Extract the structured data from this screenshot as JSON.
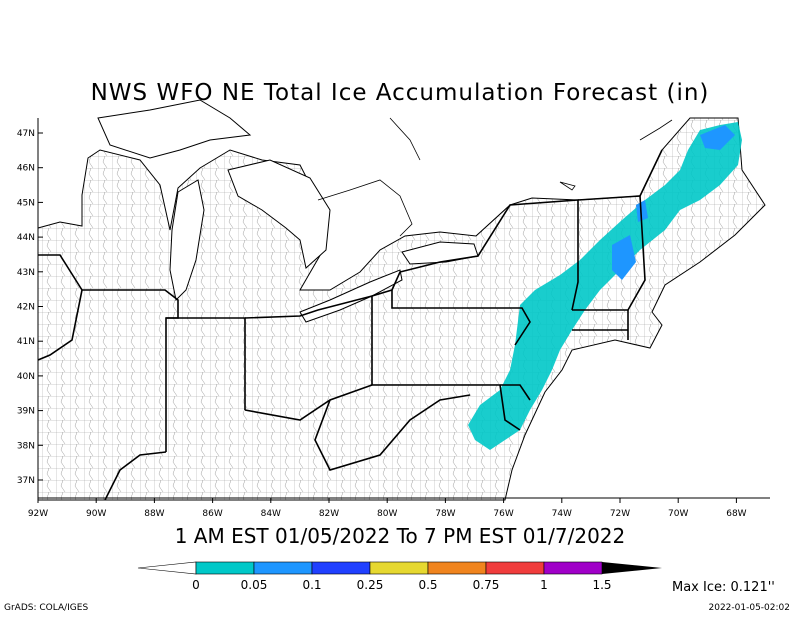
{
  "title": "NWS WFO NE Total Ice Accumulation Forecast (in)",
  "valid_period": "1 AM EST 01/05/2022 To 7 PM EST 01/7/2022",
  "lat_labels": [
    "47N",
    "46N",
    "45N",
    "44N",
    "43N",
    "42N",
    "41N",
    "40N",
    "39N",
    "38N",
    "37N"
  ],
  "lon_labels": [
    "92W",
    "90W",
    "88W",
    "86W",
    "84W",
    "82W",
    "80W",
    "78W",
    "76W",
    "74W",
    "72W",
    "70W",
    "68W"
  ],
  "colorbar": {
    "labels": [
      "0",
      "0.05",
      "0.1",
      "0.25",
      "0.5",
      "0.75",
      "1",
      "1.5"
    ],
    "colors": [
      "#00c8c8",
      "#1e96ff",
      "#2040ff",
      "#e6d830",
      "#f0841e",
      "#f03c3c",
      "#a000c8"
    ],
    "below_color": "#ffffff",
    "above_color": "#000000"
  },
  "max_ice": "Max Ice: 0.121''",
  "credit": "GrADS: COLA/IGES",
  "timestamp": "2022-01-05-02:02",
  "ice_colors": {
    "low": "#00c8c8",
    "mid": "#1e96ff"
  }
}
